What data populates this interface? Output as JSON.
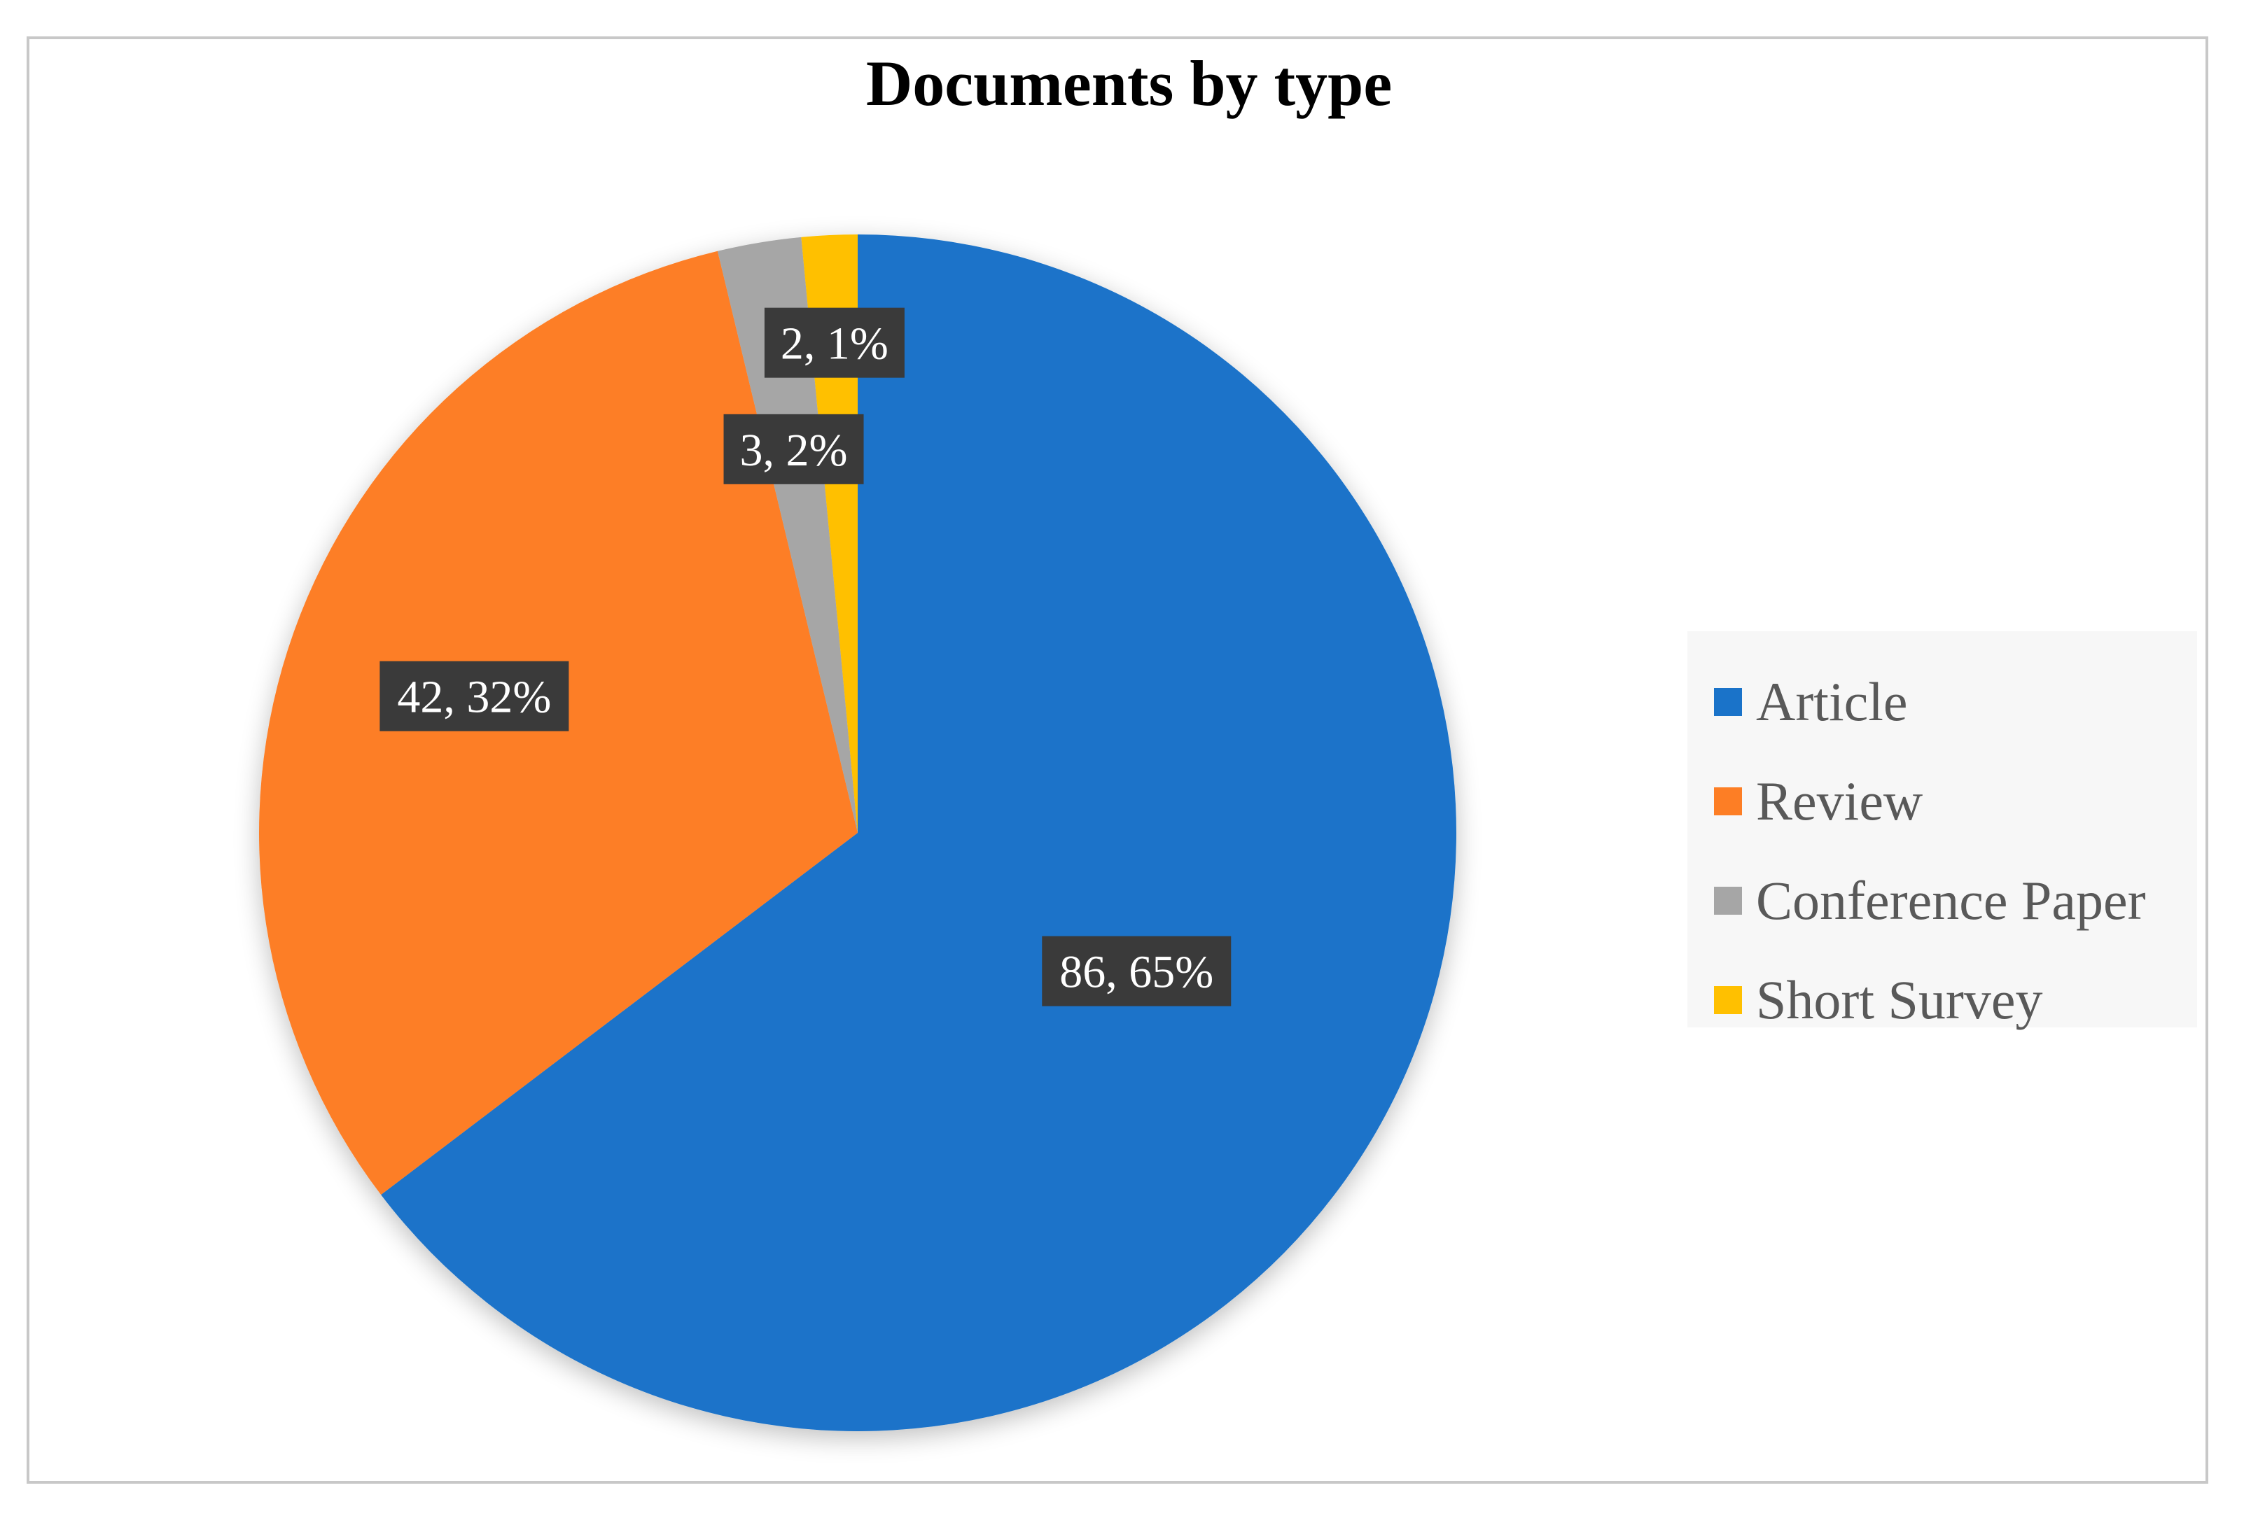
{
  "chart_data": {
    "type": "pie",
    "title": "Documents by type",
    "slices": [
      {
        "name": "Article",
        "value": 86,
        "percent": "65%",
        "label": "86, 65%",
        "color": "#1a73c9"
      },
      {
        "name": "Review",
        "value": 42,
        "percent": "32%",
        "label": "42, 32%",
        "color": "#fd7e25"
      },
      {
        "name": "Conference Paper",
        "value": 3,
        "percent": "2%",
        "label": "3, 2%",
        "color": "#a6a6a6"
      },
      {
        "name": "Short Survey",
        "value": 2,
        "percent": "1%",
        "label": "2, 1%",
        "color": "#ffc000"
      }
    ],
    "start_angle": "12 o'clock",
    "direction": "clockwise",
    "legend": "right",
    "data_labels": "value, percent"
  }
}
